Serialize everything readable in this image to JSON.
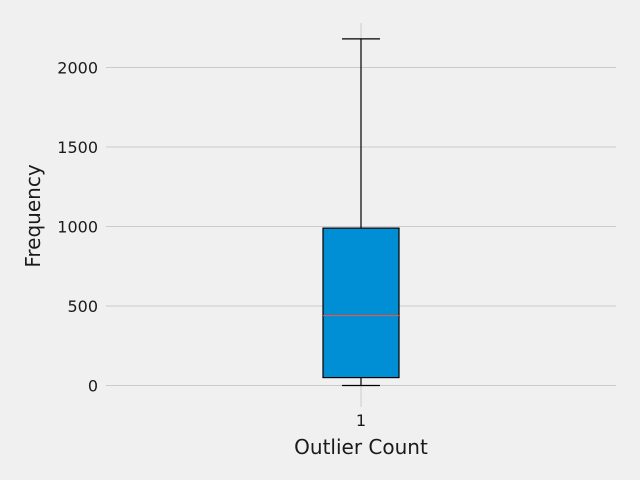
{
  "chart_data": {
    "type": "box",
    "title": "",
    "xlabel": "Outlier Count",
    "ylabel": "Frequency",
    "categories": [
      "1"
    ],
    "boxes": [
      {
        "category": "1",
        "whisker_low": 0,
        "q1": 50,
        "median": 440,
        "q3": 990,
        "whisker_high": 2180
      }
    ],
    "ylim": [
      -135,
      2280
    ],
    "yticks": [
      0,
      500,
      1000,
      1500,
      2000
    ],
    "grid": true,
    "colors": {
      "background": "#f0f0f0",
      "box_fill": "#008fd5",
      "median_line": "#fc4f30",
      "grid": "#cbcbcb",
      "edge": "#000000"
    }
  }
}
